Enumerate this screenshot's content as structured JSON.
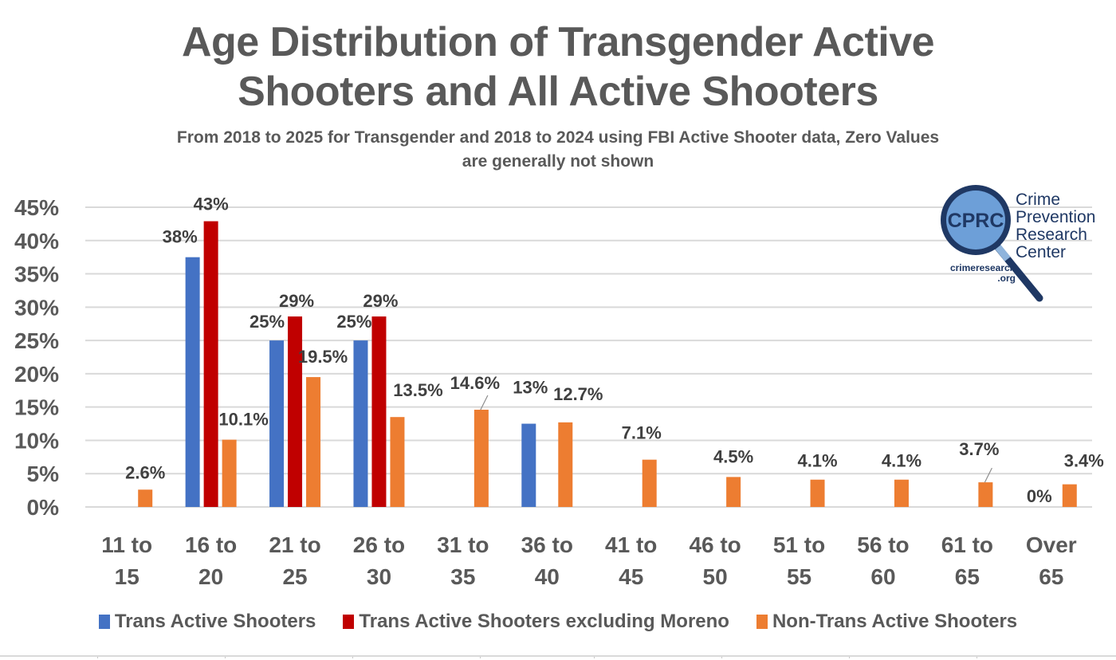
{
  "chart_data": {
    "type": "bar",
    "title": [
      "Age Distribution of Transgender Active",
      "Shooters and All Active Shooters"
    ],
    "subtitle": [
      "From 2018 to 2025 for Transgender and 2018 to 2024 using FBI Active Shooter data, Zero Values",
      "are generally not shown"
    ],
    "xlabel": "",
    "ylabel": "",
    "ylim": [
      0,
      45
    ],
    "yticks": [
      0,
      5,
      10,
      15,
      20,
      25,
      30,
      35,
      40,
      45
    ],
    "ytick_suffix": "%",
    "grid": true,
    "legend_position": "bottom",
    "categories": [
      [
        "11 to",
        "15"
      ],
      [
        "16 to",
        "20"
      ],
      [
        "21 to",
        "25"
      ],
      [
        "26 to",
        "30"
      ],
      [
        "31 to",
        "35"
      ],
      [
        "36 to",
        "40"
      ],
      [
        "41 to",
        "45"
      ],
      [
        "46 to",
        "50"
      ],
      [
        "51 to",
        "55"
      ],
      [
        "56 to",
        "60"
      ],
      [
        "61 to",
        "65"
      ],
      [
        "Over",
        "65"
      ]
    ],
    "series": [
      {
        "name": "Trans Active Shooters",
        "color": "#4472c4",
        "values": [
          0,
          37.5,
          25,
          25,
          0,
          12.5,
          0,
          0,
          0,
          0,
          0,
          0
        ],
        "labels": [
          null,
          "38%",
          "25%",
          "25%",
          null,
          "13%",
          null,
          null,
          null,
          null,
          null,
          "0%"
        ]
      },
      {
        "name": "Trans Active Shooters excluding Moreno",
        "color": "#c00000",
        "values": [
          0,
          42.9,
          28.6,
          28.6,
          0,
          0,
          0,
          0,
          0,
          0,
          0,
          0
        ],
        "labels": [
          null,
          "43%",
          "29%",
          "29%",
          null,
          null,
          null,
          null,
          null,
          null,
          null,
          null
        ]
      },
      {
        "name": "Non-Trans Active Shooters",
        "color": "#ed7d31",
        "values": [
          2.6,
          10.1,
          19.5,
          13.5,
          14.6,
          12.7,
          7.1,
          4.5,
          4.1,
          4.1,
          3.7,
          3.4
        ],
        "labels": [
          "2.6%",
          "10.1%",
          "19.5%",
          "13.5%",
          "14.6%",
          "12.7%",
          "7.1%",
          "4.5%",
          "4.1%",
          "4.1%",
          "3.7%",
          "3.4%"
        ]
      }
    ]
  },
  "logo": {
    "abbrev": "CPRC",
    "name_lines": [
      "Crime",
      "Prevention",
      "Research",
      "Center"
    ],
    "url_lines": [
      "crimeresearch",
      ".org"
    ]
  }
}
